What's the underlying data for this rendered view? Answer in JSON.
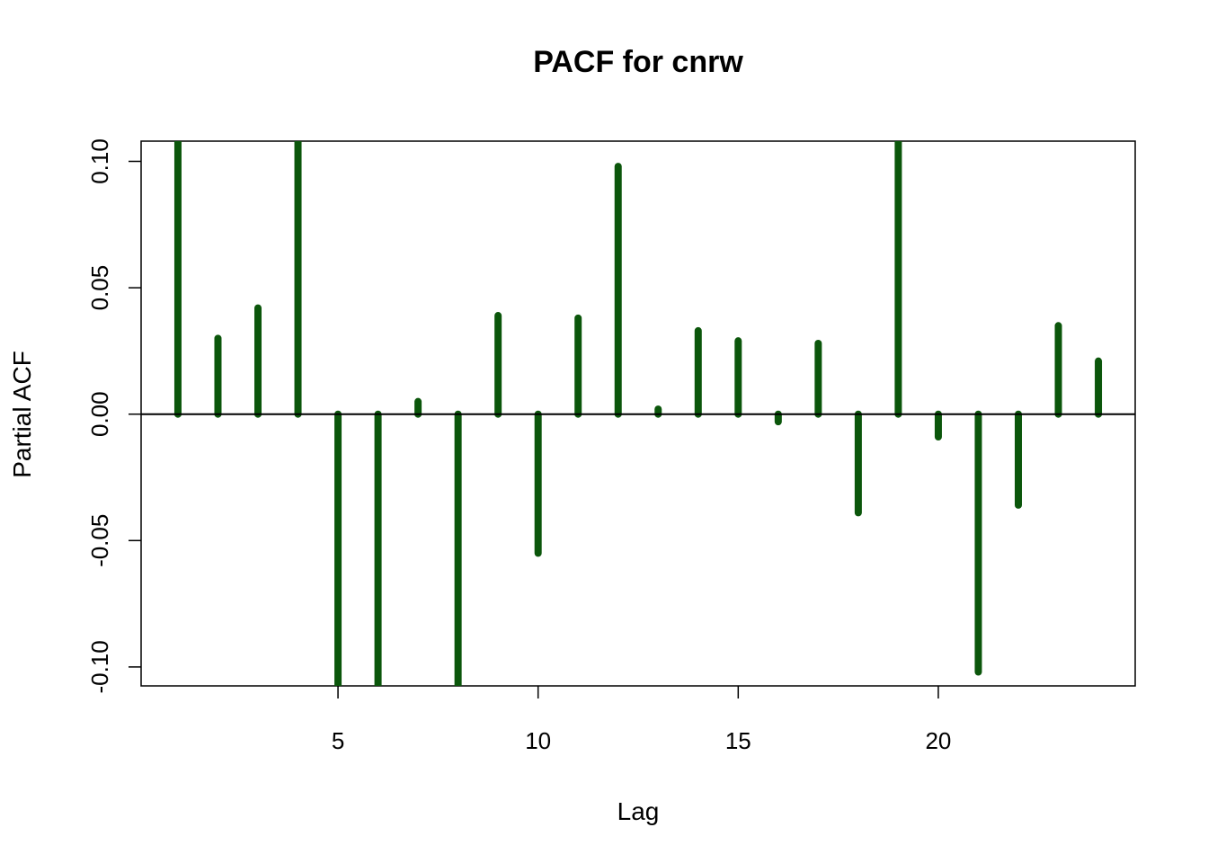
{
  "chart_data": {
    "type": "pacf",
    "title": "PACF for cnrw",
    "x_label": "Lag",
    "y_label": "Partial ACF",
    "x": [
      1,
      2,
      3,
      4,
      5,
      6,
      7,
      8,
      9,
      10,
      11,
      12,
      13,
      14,
      15,
      16,
      17,
      18,
      19,
      20,
      21,
      22,
      23,
      24
    ],
    "values": [
      0.13,
      0.03,
      0.042,
      0.12,
      -0.12,
      -0.13,
      0.005,
      -0.12,
      0.039,
      -0.055,
      0.038,
      0.098,
      0.002,
      0.033,
      0.029,
      -0.003,
      0.028,
      -0.039,
      0.115,
      -0.009,
      -0.102,
      -0.036,
      0.035,
      0.021
    ],
    "color": "#0b560b",
    "xlim": [
      0.08,
      24.92
    ],
    "ylim": [
      -0.1075,
      0.108
    ],
    "xticks": [
      5,
      10,
      15,
      20
    ],
    "yticks": [
      {
        "value": -0.1,
        "label": "-0.10"
      },
      {
        "value": -0.05,
        "label": "-0.05"
      },
      {
        "value": 0,
        "label": "0.00"
      },
      {
        "value": 0.05,
        "label": "0.05"
      },
      {
        "value": 0.1,
        "label": "0.10"
      }
    ]
  }
}
